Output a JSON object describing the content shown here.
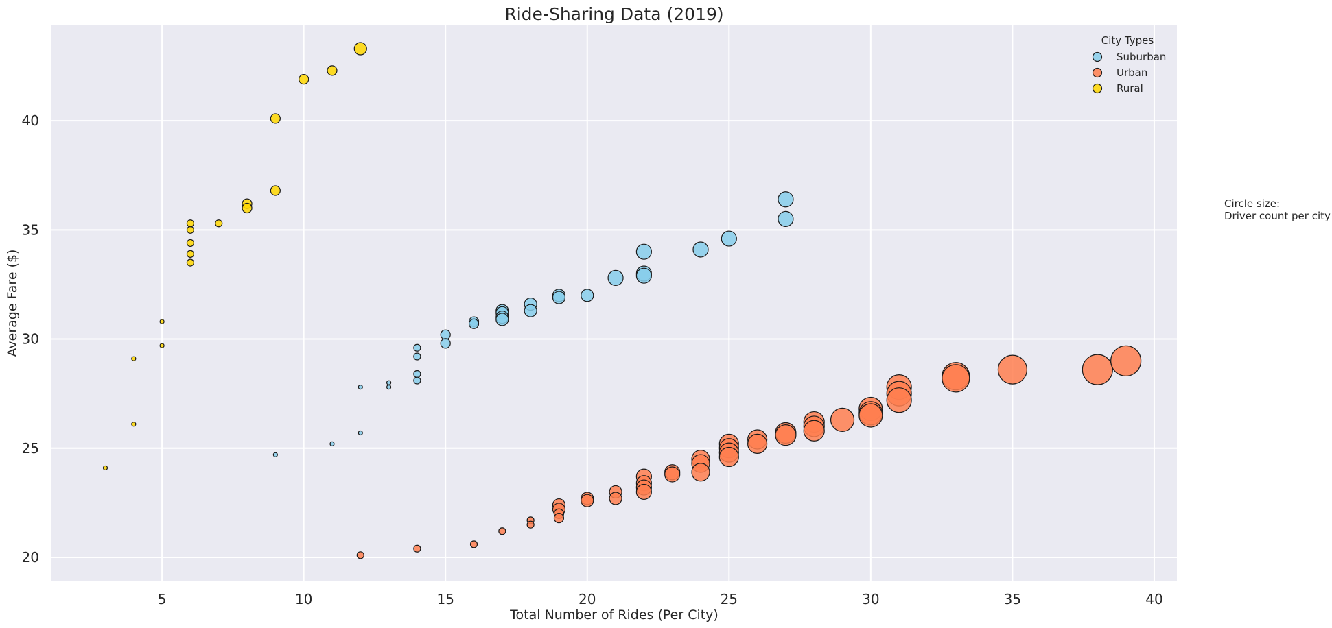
{
  "chart_data": {
    "type": "scatter",
    "title": "Ride-Sharing Data (2019)",
    "xlabel": "Total Number of Rides (Per City)",
    "ylabel": "Average Fare ($)",
    "xlim": [
      1.1,
      40.8
    ],
    "ylim": [
      18.9,
      44.4
    ],
    "xticks": [
      5,
      10,
      15,
      20,
      25,
      30,
      35,
      40
    ],
    "yticks": [
      20,
      25,
      30,
      35,
      40
    ],
    "grid": true,
    "legend": {
      "title": "City Types",
      "placement": "top-right"
    },
    "note_lines": [
      "Circle size:",
      "Driver count per city"
    ],
    "series": [
      {
        "name": "Urban",
        "color": "#FF7F50",
        "points": [
          [
            12,
            20.1,
            1
          ],
          [
            14,
            20.4,
            1
          ],
          [
            16,
            20.6,
            1
          ],
          [
            17,
            21.2,
            1
          ],
          [
            18,
            21.7,
            1
          ],
          [
            18,
            21.5,
            1
          ],
          [
            19,
            22.4,
            3
          ],
          [
            19,
            22.2,
            3
          ],
          [
            19,
            22.0,
            2
          ],
          [
            19,
            21.8,
            2
          ],
          [
            20,
            22.7,
            3
          ],
          [
            20,
            22.6,
            3
          ],
          [
            21,
            23.0,
            3
          ],
          [
            21,
            22.7,
            3
          ],
          [
            22,
            23.7,
            4
          ],
          [
            22,
            23.4,
            4
          ],
          [
            22,
            23.2,
            4
          ],
          [
            22,
            23.0,
            4
          ],
          [
            23,
            23.9,
            4
          ],
          [
            23,
            23.8,
            4
          ],
          [
            24,
            24.5,
            5
          ],
          [
            24,
            24.3,
            5
          ],
          [
            24,
            23.9,
            5
          ],
          [
            25,
            25.2,
            6
          ],
          [
            25,
            25.0,
            6
          ],
          [
            25,
            24.8,
            6
          ],
          [
            25,
            24.6,
            6
          ],
          [
            26,
            25.4,
            6
          ],
          [
            26,
            25.2,
            6
          ],
          [
            27,
            25.7,
            7
          ],
          [
            27,
            25.6,
            7
          ],
          [
            28,
            26.2,
            7
          ],
          [
            28,
            26.0,
            7
          ],
          [
            28,
            25.8,
            7
          ],
          [
            29,
            26.3,
            8
          ],
          [
            30,
            26.8,
            8
          ],
          [
            30,
            26.6,
            8
          ],
          [
            30,
            26.5,
            8
          ],
          [
            31,
            27.8,
            9
          ],
          [
            31,
            27.5,
            9
          ],
          [
            31,
            27.2,
            9
          ],
          [
            33,
            28.3,
            10
          ],
          [
            33,
            28.2,
            10
          ],
          [
            35,
            28.6,
            11
          ],
          [
            38,
            28.6,
            12
          ],
          [
            39,
            29.0,
            12
          ]
        ]
      },
      {
        "name": "Suburban",
        "color": "#87CEEB",
        "points": [
          [
            9,
            24.7,
            0
          ],
          [
            11,
            25.2,
            0
          ],
          [
            12,
            25.7,
            0
          ],
          [
            12,
            27.8,
            0
          ],
          [
            13,
            28.0,
            0
          ],
          [
            13,
            27.8,
            0
          ],
          [
            14,
            28.4,
            1
          ],
          [
            14,
            28.1,
            1
          ],
          [
            14,
            29.6,
            1
          ],
          [
            14,
            29.2,
            1
          ],
          [
            15,
            30.2,
            2
          ],
          [
            15,
            29.8,
            2
          ],
          [
            16,
            30.8,
            2
          ],
          [
            16,
            30.7,
            2
          ],
          [
            17,
            31.3,
            3
          ],
          [
            17,
            31.2,
            3
          ],
          [
            17,
            31.0,
            3
          ],
          [
            17,
            30.9,
            3
          ],
          [
            18,
            31.6,
            3
          ],
          [
            18,
            31.3,
            3
          ],
          [
            19,
            32.0,
            3
          ],
          [
            19,
            31.9,
            3
          ],
          [
            20,
            32.0,
            3
          ],
          [
            21,
            32.8,
            4
          ],
          [
            22,
            33.0,
            4
          ],
          [
            22,
            32.9,
            4
          ],
          [
            22,
            34.0,
            4
          ],
          [
            24,
            34.1,
            4
          ],
          [
            25,
            34.6,
            4
          ],
          [
            27,
            36.4,
            4
          ],
          [
            27,
            35.5,
            4
          ]
        ]
      },
      {
        "name": "Rural",
        "color": "#FFD700",
        "points": [
          [
            3,
            24.1,
            0
          ],
          [
            4,
            26.1,
            0
          ],
          [
            4,
            29.1,
            0
          ],
          [
            5,
            29.7,
            0
          ],
          [
            5,
            30.8,
            0
          ],
          [
            6,
            33.5,
            1
          ],
          [
            6,
            33.9,
            1
          ],
          [
            6,
            34.4,
            1
          ],
          [
            6,
            35.0,
            1
          ],
          [
            6,
            35.3,
            1
          ],
          [
            7,
            35.3,
            1
          ],
          [
            8,
            36.2,
            2
          ],
          [
            8,
            36.0,
            2
          ],
          [
            9,
            36.8,
            2
          ],
          [
            9,
            40.1,
            2
          ],
          [
            10,
            41.9,
            2
          ],
          [
            11,
            42.3,
            2
          ],
          [
            12,
            43.3,
            3
          ]
        ]
      }
    ],
    "legend_order": [
      "Suburban",
      "Urban",
      "Rural"
    ]
  },
  "colors": {
    "plot_background": "#EAEAF2",
    "grid": "#FFFFFF",
    "marker_edge": "#1a1a1a"
  }
}
